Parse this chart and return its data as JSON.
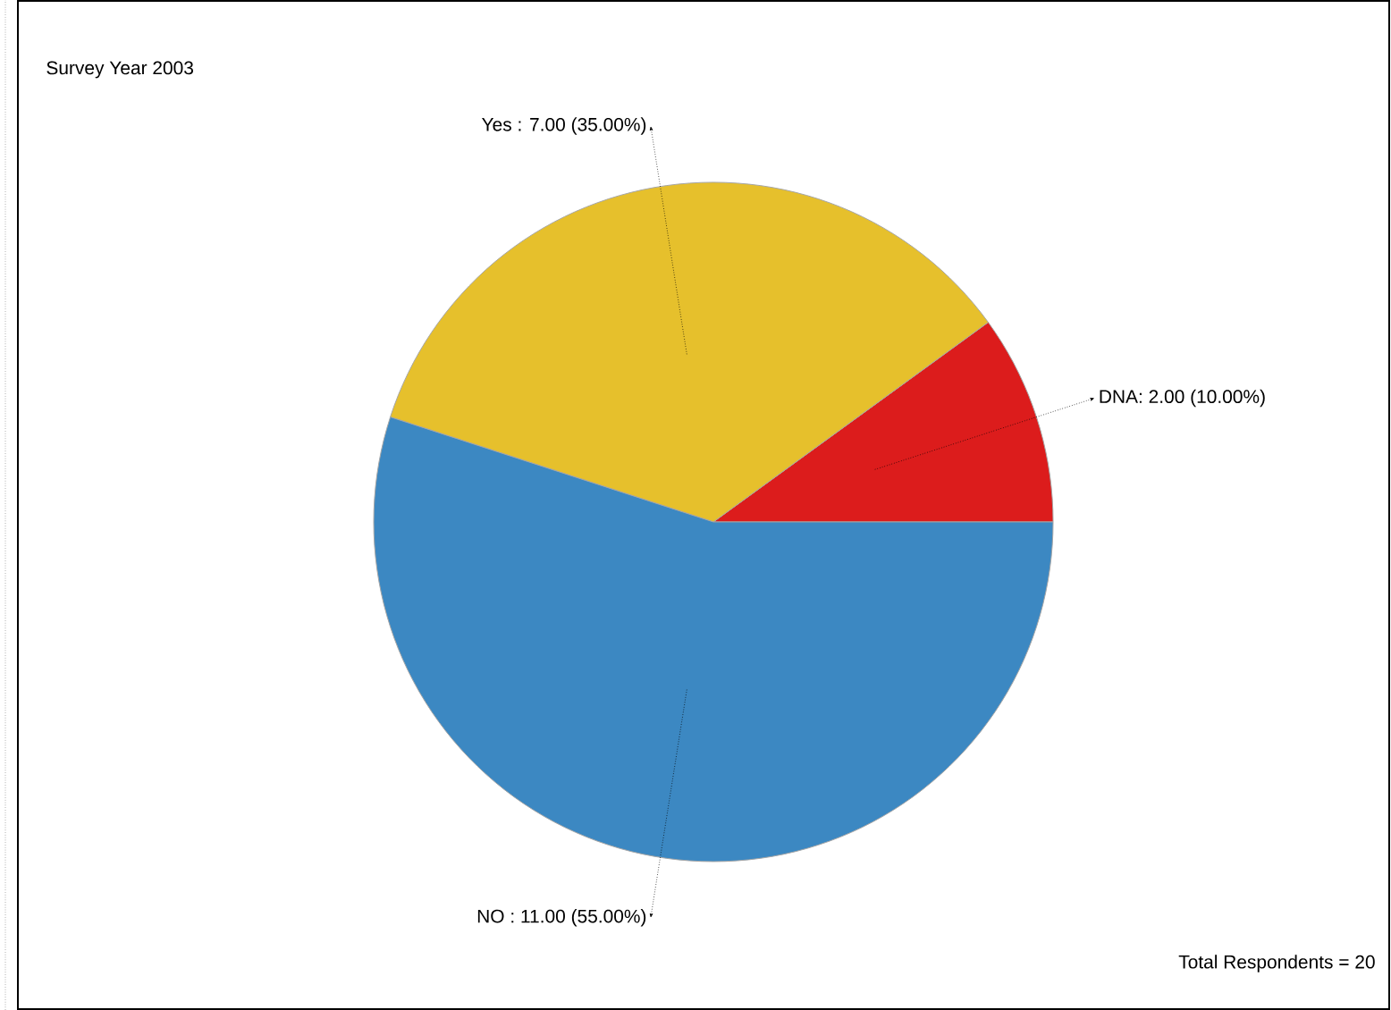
{
  "chart_data": {
    "type": "pie",
    "title": "Survey Year 2003",
    "categories": [
      "DNA",
      "Yes",
      "NO"
    ],
    "values": [
      2,
      7,
      11
    ],
    "value_labels": [
      ": 2.00 (10.00%)",
      " : 7.00 (35.00%)",
      "  : 11.00 (55.00%)"
    ],
    "colors": [
      "#dc1c1c",
      "#e6c02c",
      "#3c88c2"
    ],
    "annotations": [
      "Total Respondents = 20"
    ]
  }
}
